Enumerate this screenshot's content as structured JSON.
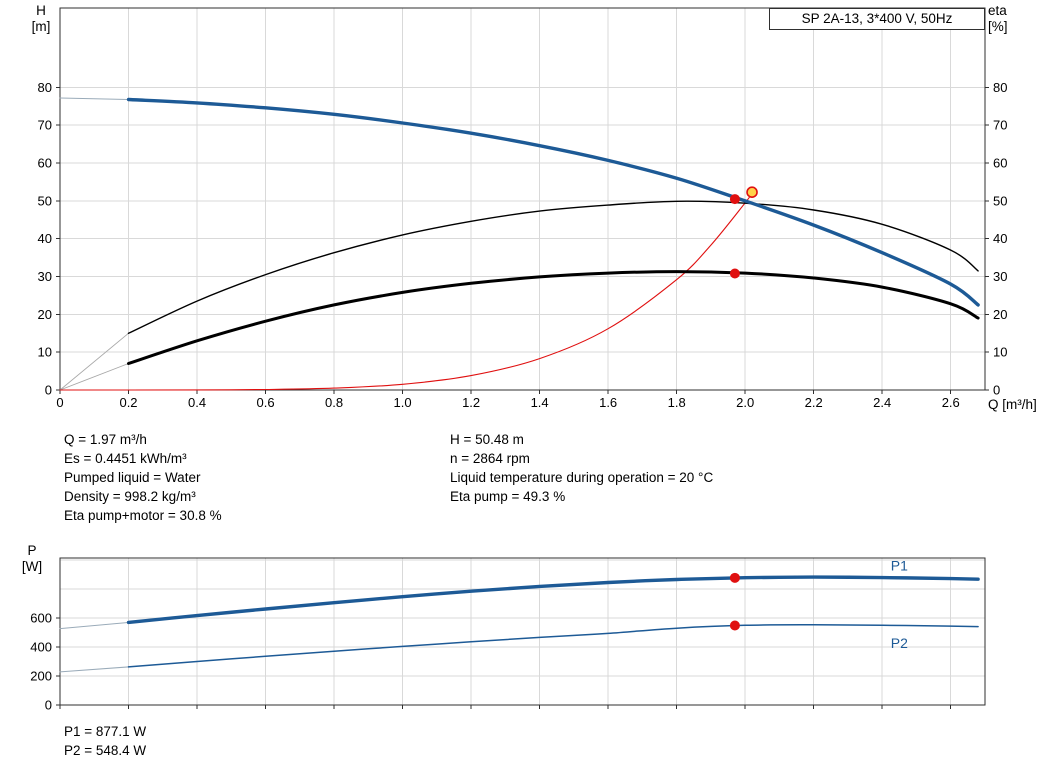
{
  "title_box": "SP 2A-13, 3*400 V, 50Hz",
  "axis_labels": {
    "h": "H",
    "h_unit": "[m]",
    "eta": "eta",
    "eta_unit": "[%]",
    "q_unit": "Q [m³/h]",
    "p": "P",
    "p_unit": "[W]"
  },
  "info": {
    "left": [
      "Q = 1.97 m³/h",
      "Es = 0.4451 kWh/m³",
      "Pumped liquid = Water",
      "Density = 998.2 kg/m³",
      "Eta pump+motor = 30.8 %"
    ],
    "right": [
      "H = 50.48 m",
      "n = 2864 rpm",
      "Liquid temperature during operation = 20 °C",
      "Eta pump = 49.3 %"
    ]
  },
  "power_values": [
    "P1 = 877.1 W",
    "P2 = 548.4 W"
  ],
  "colors": {
    "curve_blue": "#1d5a96",
    "curve_black": "#000000",
    "curve_red": "#e01010",
    "extension_gray": "#9aabb9",
    "grid": "#d9d9d9",
    "frame": "#2f2f2f"
  },
  "chart_data": [
    {
      "type": "line",
      "title": "SP 2A-13, 3*400 V, 50Hz",
      "xlabel": "Q [m³/h]",
      "ylabel": "H [m]",
      "y2label": "eta [%]",
      "xlim": [
        0,
        2.7
      ],
      "ylim": [
        0,
        101
      ],
      "grid": true,
      "xticks": {
        "values": [
          0,
          0.2,
          0.4,
          0.6,
          0.8,
          1.0,
          1.2,
          1.4,
          1.6,
          1.8,
          2.0,
          2.2,
          2.4,
          2.6
        ],
        "labels": [
          "0",
          "0.2",
          "0.4",
          "0.6",
          "0.8",
          "1.0",
          "1.2",
          "1.4",
          "1.6",
          "1.8",
          "2.0",
          "2.2",
          "2.4",
          "2.6"
        ]
      },
      "yticks": {
        "values": [
          0,
          10,
          20,
          30,
          40,
          50,
          60,
          70,
          80
        ],
        "labels": [
          "0",
          "10",
          "20",
          "30",
          "40",
          "50",
          "60",
          "70",
          "80"
        ]
      },
      "y2ticks": {
        "values": [
          0,
          10,
          20,
          30,
          40,
          50,
          60,
          70,
          80
        ],
        "labels": [
          "0",
          "10",
          "20",
          "30",
          "40",
          "50",
          "60",
          "70",
          "80"
        ]
      },
      "series": [
        {
          "name": "pump-head-curve-extension",
          "color": "#9aabb9",
          "width": 1,
          "x": [
            0,
            0.2
          ],
          "y": [
            77.2,
            76.8
          ]
        },
        {
          "name": "eta-pump-curve-extension",
          "color": "#a8a8a8",
          "width": 0.9,
          "x": [
            0,
            0.2
          ],
          "y": [
            0,
            15.0
          ]
        },
        {
          "name": "eta-pump-motor-curve-extension",
          "color": "#a8a8a8",
          "width": 0.9,
          "x": [
            0,
            0.2
          ],
          "y": [
            0,
            7.0
          ]
        },
        {
          "name": "system-curve",
          "color": "#e01010",
          "width": 1.1,
          "x": [
            0,
            0.2,
            0.4,
            0.6,
            0.8,
            1.0,
            1.2,
            1.4,
            1.6,
            1.8,
            1.9,
            2.0,
            2.02
          ],
          "y": [
            0,
            0,
            0.02,
            0.12,
            0.5,
            1.5,
            3.8,
            8.3,
            16.2,
            29.2,
            38.3,
            49.5,
            52.0
          ]
        },
        {
          "name": "eta-pump-curve",
          "color": "#000000",
          "width": 1.4,
          "x": [
            0.2,
            0.4,
            0.6,
            0.8,
            1.0,
            1.2,
            1.4,
            1.6,
            1.8,
            2.0,
            2.2,
            2.4,
            2.6,
            2.68
          ],
          "y": [
            15.0,
            23.5,
            30.5,
            36.3,
            41.0,
            44.6,
            47.3,
            48.9,
            49.9,
            49.4,
            47.6,
            43.8,
            37.0,
            31.5
          ]
        },
        {
          "name": "eta-pump-motor-curve",
          "color": "#000000",
          "width": 3,
          "x": [
            0.2,
            0.4,
            0.6,
            0.8,
            1.0,
            1.2,
            1.4,
            1.6,
            1.8,
            2.0,
            2.2,
            2.4,
            2.6,
            2.68
          ],
          "y": [
            7.0,
            13.0,
            18.2,
            22.5,
            25.8,
            28.2,
            29.9,
            30.9,
            31.3,
            30.9,
            29.6,
            27.2,
            22.8,
            19.0
          ]
        },
        {
          "name": "pump-head-curve",
          "color": "#1d5a96",
          "width": 3.4,
          "x": [
            0.2,
            0.4,
            0.6,
            0.8,
            1.0,
            1.2,
            1.4,
            1.6,
            1.8,
            2.0,
            2.2,
            2.4,
            2.6,
            2.68
          ],
          "y": [
            76.8,
            75.9,
            74.6,
            72.9,
            70.6,
            67.9,
            64.6,
            60.7,
            56.0,
            50.0,
            43.6,
            36.3,
            28.0,
            22.5
          ]
        }
      ],
      "markers": [
        {
          "name": "duty-point-requested",
          "x": 2.02,
          "y": 52.3,
          "style": "open",
          "color": "#e01010",
          "fill": "#ffd24a",
          "r": 5
        },
        {
          "name": "duty-point-head",
          "x": 1.97,
          "y": 50.48,
          "style": "filled",
          "color": "#e01010",
          "r": 5
        },
        {
          "name": "duty-point-eta-pump-motor",
          "x": 1.97,
          "y": 30.8,
          "style": "filled",
          "color": "#e01010",
          "r": 5
        }
      ],
      "duty_point": {
        "Q_m3h": 1.97,
        "H_m": 50.48,
        "eta_pump_pct": 49.3,
        "eta_pump_motor_pct": 30.8
      }
    },
    {
      "type": "line",
      "title": "",
      "xlabel": "",
      "ylabel": "P [W]",
      "xlim": [
        0,
        2.7
      ],
      "ylim": [
        0,
        1014
      ],
      "grid": true,
      "xticks": {
        "values": [
          0,
          0.2,
          0.4,
          0.6,
          0.8,
          1.0,
          1.2,
          1.4,
          1.6,
          1.8,
          2.0,
          2.2,
          2.4,
          2.6
        ],
        "labels": []
      },
      "yticks": {
        "values": [
          0,
          200,
          400,
          600
        ],
        "labels": [
          "0",
          "200",
          "400",
          "600"
        ]
      },
      "grid_extra_y": [
        800,
        1000
      ],
      "series": [
        {
          "name": "p1-curve-extension",
          "color": "#9aabb9",
          "width": 1,
          "x": [
            0,
            0.2
          ],
          "y": [
            527,
            570
          ]
        },
        {
          "name": "p2-curve-extension",
          "color": "#9aabb9",
          "width": 1,
          "x": [
            0,
            0.2
          ],
          "y": [
            228,
            263
          ]
        },
        {
          "name": "p2-curve",
          "color": "#1d5a96",
          "width": 1.5,
          "x": [
            0.2,
            0.4,
            0.6,
            0.8,
            1.0,
            1.2,
            1.4,
            1.6,
            1.8,
            2.0,
            2.2,
            2.4,
            2.6,
            2.68
          ],
          "y": [
            263,
            300,
            336,
            371,
            404,
            436,
            466,
            494,
            530,
            550,
            553,
            550,
            544,
            541
          ],
          "label": {
            "text": "P2",
            "x": 2.45,
            "y": 420
          }
        },
        {
          "name": "p1-curve",
          "color": "#1d5a96",
          "width": 3.4,
          "x": [
            0.2,
            0.4,
            0.6,
            0.8,
            1.0,
            1.2,
            1.4,
            1.6,
            1.8,
            2.0,
            2.2,
            2.4,
            2.6,
            2.68
          ],
          "y": [
            570,
            617,
            662,
            706,
            747,
            785,
            818,
            845,
            866,
            878,
            882,
            879,
            872,
            868
          ],
          "label": {
            "text": "P1",
            "x": 2.45,
            "y": 955
          }
        }
      ],
      "markers": [
        {
          "name": "duty-point-p1",
          "x": 1.97,
          "y": 877.1,
          "style": "filled",
          "color": "#e01010",
          "r": 5
        },
        {
          "name": "duty-point-p2",
          "x": 1.97,
          "y": 548.4,
          "style": "filled",
          "color": "#e01010",
          "r": 5
        }
      ],
      "duty_point": {
        "Q_m3h": 1.97,
        "P1_W": 877.1,
        "P2_W": 548.4
      }
    }
  ]
}
